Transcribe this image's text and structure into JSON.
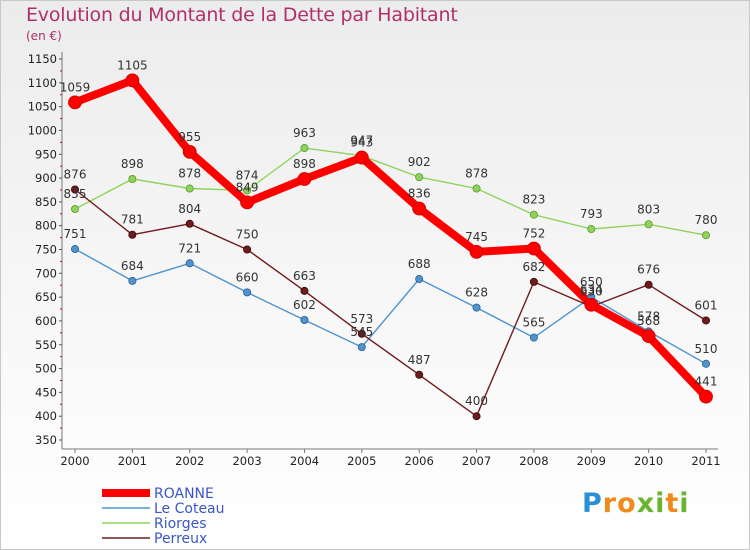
{
  "title": "Evolution du Montant de la Dette par Habitant",
  "unit_label": "(en €)",
  "logo_text": "Proxiti",
  "chart_data": {
    "type": "line",
    "title": "Evolution du Montant de la Dette par Habitant",
    "subtitle": "(en €)",
    "xlabel": "",
    "ylabel": "",
    "ylim": [
      350,
      1150
    ],
    "y_ticks": [
      350,
      400,
      450,
      500,
      550,
      600,
      650,
      700,
      750,
      800,
      850,
      900,
      950,
      1000,
      1050,
      1100,
      1150
    ],
    "grid": false,
    "legend": "bottom-left",
    "categories": [
      "2000",
      "2001",
      "2002",
      "2003",
      "2004",
      "2005",
      "2006",
      "2007",
      "2008",
      "2009",
      "2010",
      "2011"
    ],
    "series": [
      {
        "name": "ROANNE",
        "values": [
          1059,
          1105,
          955,
          849,
          898,
          943,
          836,
          745,
          752,
          634,
          568,
          441
        ],
        "color": "#ff0000"
      },
      {
        "name": "Le Coteau",
        "values": [
          751,
          684,
          721,
          660,
          602,
          545,
          688,
          628,
          565,
          650,
          578,
          510
        ],
        "color": "#4f93cf"
      },
      {
        "name": "Riorges",
        "values": [
          835,
          898,
          878,
          874,
          963,
          947,
          902,
          878,
          823,
          793,
          803,
          780
        ],
        "color": "#8fd35c"
      },
      {
        "name": "Perreux",
        "values": [
          876,
          781,
          804,
          750,
          663,
          573,
          487,
          400,
          682,
          630,
          676,
          601
        ],
        "color": "#6e1b1b"
      }
    ]
  }
}
